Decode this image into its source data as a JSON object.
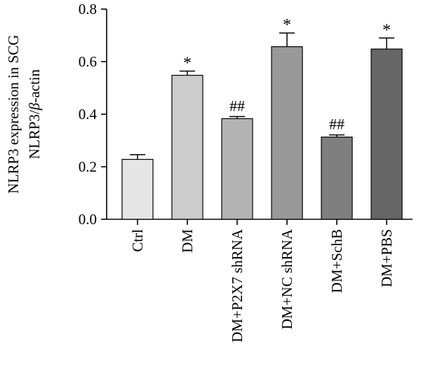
{
  "chart_data": {
    "type": "bar",
    "categories": [
      "Ctrl",
      "DM",
      "DM+P2X7 shRNA",
      "DM+NC shRNA",
      "DM+SchB",
      "DM+PBS"
    ],
    "values": [
      0.228,
      0.548,
      0.383,
      0.657,
      0.313,
      0.648
    ],
    "errors": [
      0.018,
      0.016,
      0.008,
      0.052,
      0.008,
      0.042
    ],
    "annotations": [
      "",
      "*",
      "##",
      "*",
      "##",
      "*"
    ],
    "colors": [
      "#e6e6e6",
      "#cccccc",
      "#b3b3b3",
      "#999999",
      "#7f7f7f",
      "#666666"
    ],
    "ylabel_line1": "NLRP3 expression in SCG",
    "ylabel_line2_prefix": "NLRP3/",
    "ylabel_line2_italic": "β",
    "ylabel_line2_suffix": "-actin",
    "ylim": [
      0,
      0.8
    ],
    "yticks": [
      0.0,
      0.2,
      0.4,
      0.6,
      0.8
    ],
    "ytick_labels": [
      "0.0",
      "0.2",
      "0.4",
      "0.6",
      "0.8"
    ],
    "grid": false,
    "legend": "none"
  }
}
